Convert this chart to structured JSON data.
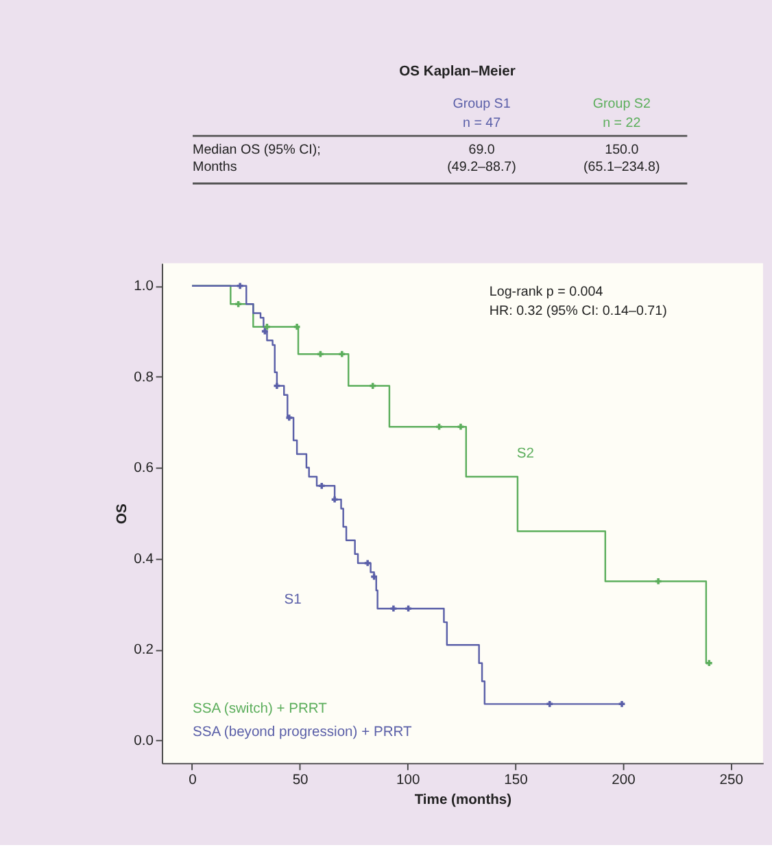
{
  "chart_data": [
    {
      "type": "other",
      "title": "OS Kaplan–Meier",
      "annotations": [
        "Group S1",
        "n = 47",
        "Group S2",
        "n = 22",
        "Median OS (95% CI);",
        "Months",
        "69.0",
        "(49.2–88.7)",
        "150.0",
        "(65.1–234.8)"
      ]
    },
    {
      "type": "step",
      "xlabel": "Time (months)",
      "ylabel": "OS",
      "xlim": [
        -14,
        265
      ],
      "ylim": [
        -0.05,
        1.05
      ],
      "xticks": [
        0,
        50,
        100,
        150,
        200,
        250
      ],
      "yticks": [
        {
          "value": 0,
          "label": "0.0"
        },
        0.2,
        0.4,
        0.6,
        0.8,
        {
          "value": 1,
          "label": "1.0"
        }
      ],
      "legend": "bottom left",
      "annotations": [
        "Log-rank p = 0.004",
        "HR: 0.32 (95% CI: 0.14–0.71)",
        "S2",
        "S1"
      ],
      "series": [
        {
          "name": "SSA (switch) + PRRT",
          "color": "#5cae5c",
          "type": "step",
          "x": [
            0,
            17.9,
            28.4,
            49.3,
            72.6,
            91.6,
            127.2,
            151.1,
            191.8,
            238.6,
            240
          ],
          "values": [
            1.0,
            0.96,
            0.91,
            0.85,
            0.78,
            0.69,
            0.58,
            0.46,
            0.35,
            0.17,
            0.17
          ]
        },
        {
          "name": "SSA (beyond progression) + PRRT",
          "color": "#5a5fa8",
          "type": "step",
          "x": [
            0,
            25.2,
            28.4,
            31.8,
            33.2,
            33.8,
            34.8,
            37.4,
            38.4,
            39.4,
            42.7,
            44.3,
            47.1,
            48.7,
            53.1,
            54.3,
            57.9,
            66.2,
            69.2,
            70.2,
            71.6,
            75.6,
            77.0,
            82.9,
            84.5,
            85.5,
            86.1,
            116.9,
            118.3,
            133.2,
            134.6,
            135.8,
            199.5
          ],
          "values": [
            1.0,
            0.96,
            0.94,
            0.93,
            0.91,
            0.9,
            0.88,
            0.87,
            0.81,
            0.78,
            0.76,
            0.71,
            0.66,
            0.63,
            0.6,
            0.58,
            0.56,
            0.53,
            0.51,
            0.47,
            0.44,
            0.41,
            0.39,
            0.37,
            0.36,
            0.33,
            0.29,
            0.26,
            0.21,
            0.17,
            0.13,
            0.08,
            0.08
          ]
        },
        {
          "color": "#5cae5c",
          "type": "scatter",
          "marker": "cross",
          "x": [
            21.5,
            34.8,
            48.7,
            59.6,
            69.6,
            83.9,
            114.7,
            124.7,
            216.4,
            240
          ],
          "values": [
            0.96,
            0.91,
            0.91,
            0.85,
            0.85,
            0.78,
            0.69,
            0.69,
            0.35,
            0.17
          ]
        },
        {
          "color": "#5a5fa8",
          "type": "scatter",
          "marker": "cross",
          "x": [
            22.3,
            33.8,
            39.4,
            45.1,
            60.2,
            66.2,
            81.5,
            84.5,
            93.5,
            100.4,
            166,
            199.5
          ],
          "values": [
            1.0,
            0.9,
            0.78,
            0.71,
            0.56,
            0.53,
            0.39,
            0.36,
            0.29,
            0.29,
            0.08,
            0.08
          ]
        }
      ]
    }
  ]
}
